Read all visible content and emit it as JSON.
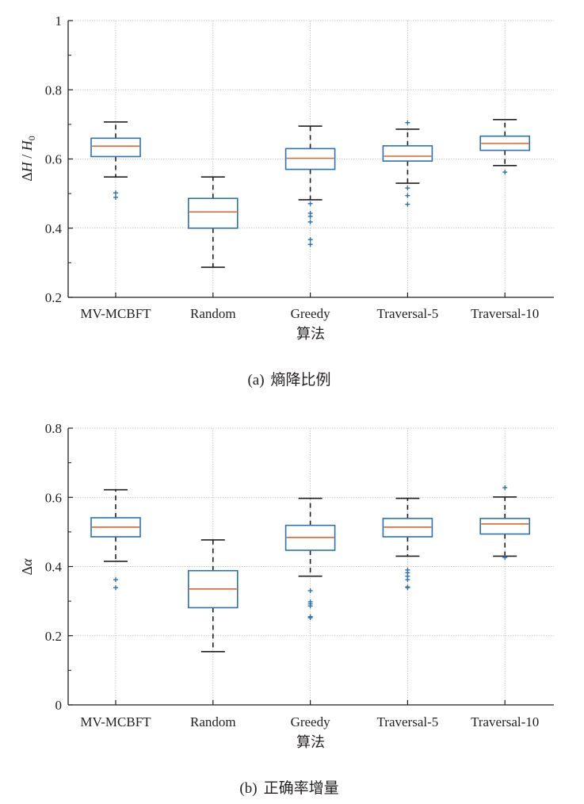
{
  "colors": {
    "box": "#2a72b5",
    "median": "#e0632a",
    "whisker": "#231f20",
    "outlier": "#2a72b5",
    "grid": "#bdbdbd",
    "axis": "#231f20"
  },
  "chart_data": [
    {
      "id": "a",
      "type": "box",
      "caption_prefix": "(a)",
      "caption": "熵降比例",
      "ylabel": "ΔH / H0",
      "ylabel_parts": {
        "delta": "Δ",
        "var1": "H",
        "sep": " / ",
        "var2": "H",
        "sub": "0"
      },
      "xlabel": "算法",
      "ylim": [
        0.2,
        1.0
      ],
      "yticks": [
        0.2,
        0.4,
        0.6,
        0.8,
        1.0
      ],
      "ytick_labels": [
        "0.2",
        "0.4",
        "0.6",
        "0.8",
        "1"
      ],
      "yminor": [
        0.3,
        0.5,
        0.7,
        0.9
      ],
      "grid": true,
      "categories": [
        "MV-MCBFT",
        "Random",
        "Greedy",
        "Traversal-5",
        "Traversal-10"
      ],
      "series": [
        {
          "name": "MV-MCBFT",
          "whisker_low": 0.548,
          "q1": 0.607,
          "median": 0.637,
          "q3": 0.66,
          "whisker_high": 0.707,
          "outliers": [
            0.502,
            0.489
          ]
        },
        {
          "name": "Random",
          "whisker_low": 0.287,
          "q1": 0.4,
          "median": 0.447,
          "q3": 0.486,
          "whisker_high": 0.548,
          "outliers": []
        },
        {
          "name": "Greedy",
          "whisker_low": 0.482,
          "q1": 0.57,
          "median": 0.602,
          "q3": 0.63,
          "whisker_high": 0.695,
          "outliers": [
            0.471,
            0.443,
            0.434,
            0.418,
            0.367,
            0.353
          ]
        },
        {
          "name": "Traversal-5",
          "whisker_low": 0.53,
          "q1": 0.594,
          "median": 0.608,
          "q3": 0.638,
          "whisker_high": 0.686,
          "outliers": [
            0.705,
            0.516,
            0.494,
            0.469
          ]
        },
        {
          "name": "Traversal-10",
          "whisker_low": 0.581,
          "q1": 0.625,
          "median": 0.645,
          "q3": 0.666,
          "whisker_high": 0.714,
          "outliers": [
            0.562
          ]
        }
      ]
    },
    {
      "id": "b",
      "type": "box",
      "caption_prefix": "(b)",
      "caption": "正确率增量",
      "ylabel": "Δα",
      "ylabel_parts": {
        "delta": "Δ",
        "var1": "α",
        "sep": "",
        "var2": "",
        "sub": ""
      },
      "xlabel": "算法",
      "ylim": [
        0,
        0.8
      ],
      "yticks": [
        0,
        0.2,
        0.4,
        0.6,
        0.8
      ],
      "ytick_labels": [
        "0",
        "0.2",
        "0.4",
        "0.6",
        "0.8"
      ],
      "yminor": [
        0.1,
        0.3,
        0.5,
        0.7
      ],
      "grid": true,
      "categories": [
        "MV-MCBFT",
        "Random",
        "Greedy",
        "Traversal-5",
        "Traversal-10"
      ],
      "series": [
        {
          "name": "MV-MCBFT",
          "whisker_low": 0.415,
          "q1": 0.486,
          "median": 0.514,
          "q3": 0.541,
          "whisker_high": 0.622,
          "outliers": [
            0.362,
            0.339
          ]
        },
        {
          "name": "Random",
          "whisker_low": 0.154,
          "q1": 0.281,
          "median": 0.335,
          "q3": 0.388,
          "whisker_high": 0.477,
          "outliers": []
        },
        {
          "name": "Greedy",
          "whisker_low": 0.372,
          "q1": 0.447,
          "median": 0.484,
          "q3": 0.519,
          "whisker_high": 0.597,
          "outliers": [
            0.33,
            0.298,
            0.292,
            0.286,
            0.255,
            0.252
          ]
        },
        {
          "name": "Traversal-5",
          "whisker_low": 0.43,
          "q1": 0.486,
          "median": 0.514,
          "q3": 0.539,
          "whisker_high": 0.597,
          "outliers": [
            0.39,
            0.382,
            0.372,
            0.362,
            0.341,
            0.339
          ]
        },
        {
          "name": "Traversal-10",
          "whisker_low": 0.43,
          "q1": 0.494,
          "median": 0.523,
          "q3": 0.539,
          "whisker_high": 0.601,
          "outliers": [
            0.628,
            0.426
          ]
        }
      ]
    }
  ]
}
